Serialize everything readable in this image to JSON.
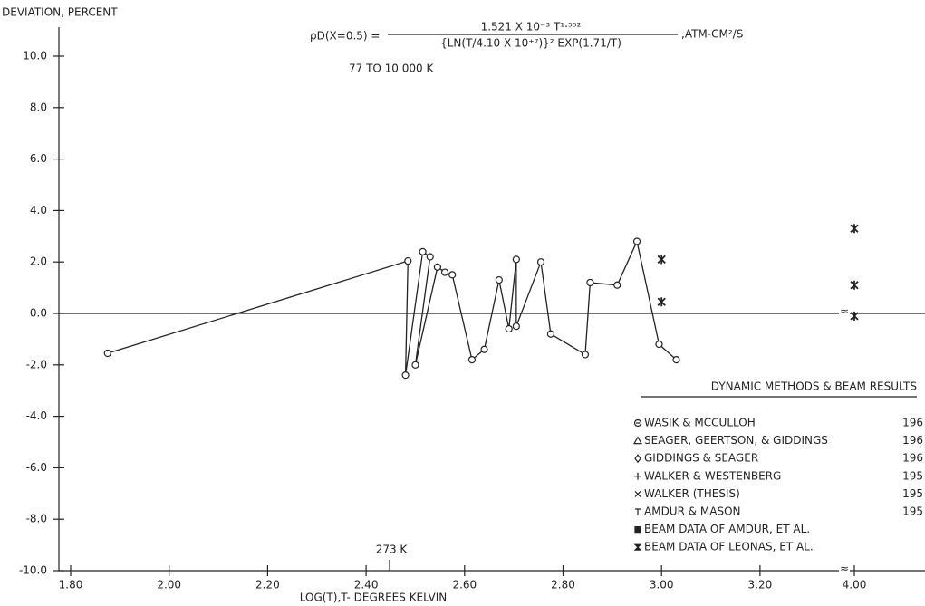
{
  "chart_data": {
    "type": "line",
    "y_label": "DEVIATION, PERCENT",
    "x_label": "LOG(T),T- DEGREES KELVIN",
    "formula": {
      "lhs": "ρD(X=0.5) =",
      "numerator": "1.521 X 10⁻³ T¹·⁵⁵²",
      "denominator": "{LN(T/4.10 X 10⁺⁷)}² EXP(1.71/T)",
      "units": ",ATM-CM²/S"
    },
    "range_note": "77 TO 10 000 K",
    "annotation": "273 K",
    "xlim": [
      1.8,
      4.1
    ],
    "ylim": [
      -10,
      10
    ],
    "xticks": [
      {
        "value": 1.8,
        "label": "1.80"
      },
      {
        "value": 2.0,
        "label": "2.00"
      },
      {
        "value": 2.2,
        "label": "2.20"
      },
      {
        "value": 2.4,
        "label": "2.40"
      },
      {
        "value": 2.6,
        "label": "2.60"
      },
      {
        "value": 2.8,
        "label": "2.80"
      },
      {
        "value": 3.0,
        "label": "3.00"
      },
      {
        "value": 3.2,
        "label": "3.20"
      },
      {
        "value": 4.0,
        "label": "4.00"
      }
    ],
    "yticks": [
      {
        "value": 10,
        "label": "10.0"
      },
      {
        "value": 8,
        "label": "8.0"
      },
      {
        "value": 6,
        "label": "6.0"
      },
      {
        "value": 4,
        "label": "4.0"
      },
      {
        "value": 2,
        "label": "2.0"
      },
      {
        "value": 0,
        "label": "0.0"
      },
      {
        "value": -2,
        "label": "-2.0"
      },
      {
        "value": -4,
        "label": "-4.0"
      },
      {
        "value": -6,
        "label": "-6.0"
      },
      {
        "value": -8,
        "label": "-8.0"
      },
      {
        "value": -10,
        "label": "-10.0"
      }
    ],
    "series": [
      {
        "color": "#222222",
        "line": true,
        "x": [
          1.875,
          2.485,
          2.48,
          2.515,
          2.53,
          2.5,
          2.545,
          2.56,
          2.575,
          2.615,
          2.64,
          2.67,
          2.69,
          2.705,
          2.705,
          2.755,
          2.775,
          2.845,
          2.855,
          2.91,
          2.95,
          2.995,
          3.03
        ],
        "values": [
          -1.55,
          2.04,
          -2.4,
          2.4,
          2.2,
          -2.0,
          1.8,
          1.6,
          1.5,
          -1.8,
          -1.4,
          1.3,
          -0.6,
          2.1,
          -0.5,
          2.0,
          -0.8,
          -1.6,
          1.2,
          1.1,
          2.8,
          -1.2,
          -1.8
        ]
      },
      {
        "color": "#222222",
        "line": false,
        "x": [
          3.0,
          3.0,
          4.0,
          4.0,
          4.0
        ],
        "values": [
          2.1,
          0.45,
          3.3,
          1.1,
          -0.1
        ]
      }
    ],
    "legend": {
      "title": "DYNAMIC METHODS & BEAM RESULTS",
      "entries": [
        {
          "label": "WASIK & MCCULLOH",
          "year": "196"
        },
        {
          "label": "SEAGER, GEERTSON, & GIDDINGS",
          "year": "196"
        },
        {
          "label": "GIDDINGS & SEAGER",
          "year": "196"
        },
        {
          "label": "WALKER & WESTENBERG",
          "year": "195"
        },
        {
          "label": "WALKER (THESIS)",
          "year": "195"
        },
        {
          "label": "AMDUR & MASON",
          "year": "195"
        },
        {
          "label": "BEAM DATA OF AMDUR, ET AL.",
          "year": null
        },
        {
          "label": "BEAM DATA OF LEONAS, ET AL.",
          "year": null
        }
      ]
    }
  }
}
